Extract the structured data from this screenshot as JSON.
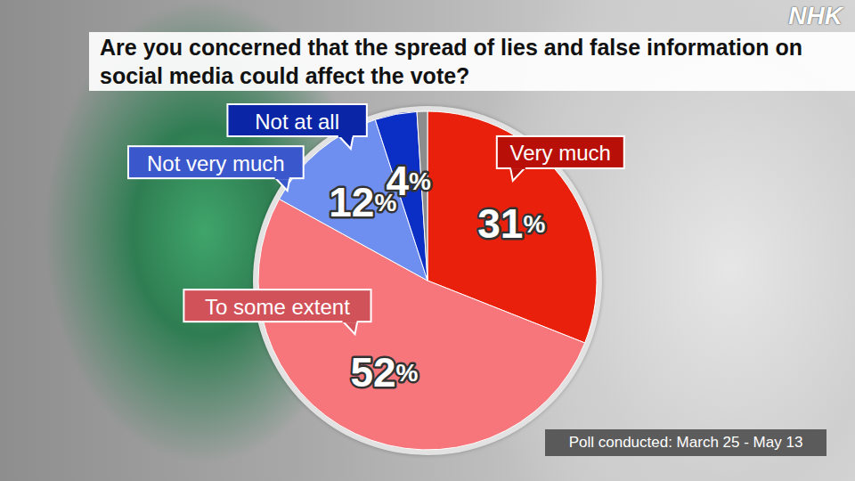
{
  "chart_data": {
    "type": "pie",
    "title": "Are you concerned that the spread of lies and false information on social media could affect the vote?",
    "categories": [
      "Very much",
      "To some extent",
      "Not very much",
      "Not at all",
      null
    ],
    "values": [
      31,
      52,
      12,
      4,
      1
    ],
    "value_labels": [
      "31%",
      "52%",
      "12%",
      "4%",
      null
    ],
    "colors": [
      "#e8200c",
      "#f7767c",
      "#6f8ff0",
      "#0b2fc4",
      "#8c8c8c"
    ],
    "data_labels": true,
    "annotations": [
      "Poll conducted: March 25 - May 13",
      "NHK"
    ]
  }
}
